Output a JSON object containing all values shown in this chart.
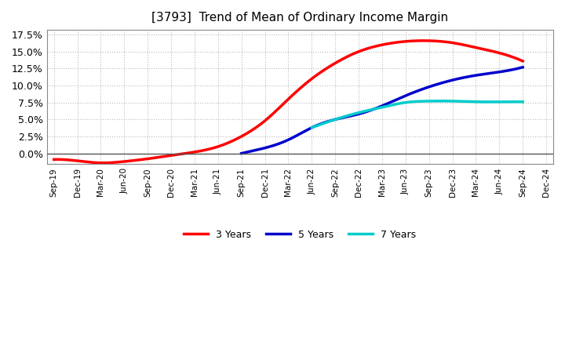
{
  "title": "[3793]  Trend of Mean of Ordinary Income Margin",
  "background_color": "#ffffff",
  "grid_color": "#aaaaaa",
  "ylim": [
    -0.016,
    0.182
  ],
  "yticks": [
    0.0,
    0.025,
    0.05,
    0.075,
    0.1,
    0.125,
    0.15,
    0.175
  ],
  "ytick_labels": [
    "0.0%",
    "2.5%",
    "5.0%",
    "7.5%",
    "10.0%",
    "12.5%",
    "15.0%",
    "17.5%"
  ],
  "x_labels": [
    "Sep-19",
    "Dec-19",
    "Mar-20",
    "Jun-20",
    "Sep-20",
    "Dec-20",
    "Mar-21",
    "Jun-21",
    "Sep-21",
    "Dec-21",
    "Mar-22",
    "Jun-22",
    "Sep-22",
    "Dec-22",
    "Mar-23",
    "Jun-23",
    "Sep-23",
    "Dec-23",
    "Mar-24",
    "Jun-24",
    "Sep-24",
    "Dec-24"
  ],
  "series": {
    "3 Years": {
      "color": "#ff0000",
      "linewidth": 2.5,
      "values": [
        -0.009,
        -0.011,
        -0.014,
        -0.012,
        -0.008,
        -0.003,
        0.002,
        0.01,
        0.025,
        0.048,
        0.08,
        0.11,
        0.133,
        0.15,
        0.16,
        0.165,
        0.166,
        0.163,
        0.156,
        0.148,
        0.136,
        null
      ]
    },
    "5 Years": {
      "color": "#0000cc",
      "linewidth": 2.5,
      "values": [
        null,
        null,
        null,
        null,
        null,
        null,
        null,
        null,
        0.0,
        0.008,
        0.02,
        0.038,
        0.05,
        0.058,
        0.07,
        0.085,
        0.098,
        0.108,
        0.115,
        0.12,
        0.127,
        null
      ]
    },
    "7 Years": {
      "color": "#00cccc",
      "linewidth": 2.5,
      "values": [
        null,
        null,
        null,
        null,
        null,
        null,
        null,
        null,
        null,
        null,
        null,
        0.038,
        0.05,
        0.06,
        0.068,
        0.075,
        0.077,
        0.077,
        0.076,
        0.076,
        0.076,
        null
      ]
    },
    "10 Years": {
      "color": "#008000",
      "linewidth": 2.5,
      "values": [
        null,
        null,
        null,
        null,
        null,
        null,
        null,
        null,
        null,
        null,
        null,
        null,
        null,
        null,
        null,
        null,
        null,
        null,
        null,
        null,
        null,
        null
      ]
    }
  }
}
